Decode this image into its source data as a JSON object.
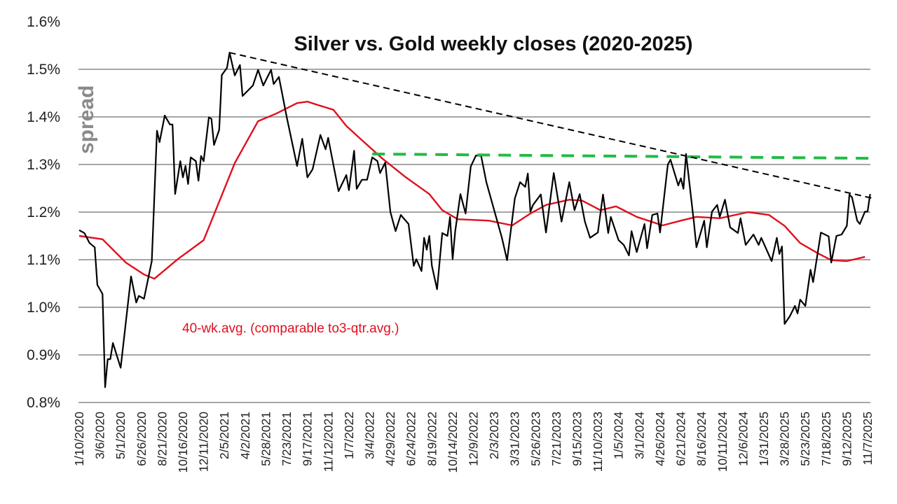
{
  "chart_data": {
    "type": "line",
    "title": "Silver vs. Gold weekly closes (2020-2025)",
    "ylabel": "spread",
    "xlabel": "",
    "ylim": [
      0.8,
      1.6
    ],
    "yticks": [
      "0.8%",
      "0.9%",
      "1.0%",
      "1.1%",
      "1.2%",
      "1.3%",
      "1.4%",
      "1.5%",
      "1.6%"
    ],
    "xticks": [
      "1/10/2020",
      "3/6/2020",
      "5/1/2020",
      "6/26/2020",
      "8/21/2020",
      "10/16/2020",
      "12/11/2020",
      "2/5/2021",
      "4/2/2021",
      "5/28/2021",
      "7/23/2021",
      "9/17/2021",
      "11/12/2021",
      "1/7/2022",
      "3/4/2022",
      "4/29/2022",
      "6/24/2022",
      "8/19/2022",
      "10/14/2022",
      "12/9/2022",
      "2/3/2023",
      "3/31/2023",
      "5/26/2023",
      "7/21/2023",
      "9/15/2023",
      "11/10/2023",
      "1/5/2024",
      "3/1/2024",
      "4/26/2024",
      "6/21/2024",
      "8/16/2024",
      "10/11/2024",
      "12/6/2024",
      "1/31/2025",
      "3/28/2025",
      "5/23/2025",
      "7/18/2025",
      "9/12/2025",
      "11/7/2025"
    ],
    "grid": true,
    "annotation": "40-wk.avg. (comparable to3-qtr.avg.)",
    "colors": {
      "weekly": "#000000",
      "avg": "#e0101e",
      "trend": "#000000",
      "support": "#22bb44",
      "grid": "#a6a6a6"
    },
    "series": [
      {
        "key": "weekly",
        "points": [
          [
            "2020-01-10",
            1.162
          ],
          [
            "2020-01-24",
            1.156
          ],
          [
            "2020-02-07",
            1.135
          ],
          [
            "2020-02-21",
            1.126
          ],
          [
            "2020-02-28",
            1.047
          ],
          [
            "2020-03-13",
            1.028
          ],
          [
            "2020-03-20",
            0.832
          ],
          [
            "2020-03-27",
            0.891
          ],
          [
            "2020-04-03",
            0.891
          ],
          [
            "2020-04-10",
            0.925
          ],
          [
            "2020-05-01",
            0.873
          ],
          [
            "2020-05-29",
            1.065
          ],
          [
            "2020-06-12",
            1.01
          ],
          [
            "2020-06-19",
            1.024
          ],
          [
            "2020-07-03",
            1.018
          ],
          [
            "2020-07-24",
            1.097
          ],
          [
            "2020-07-31",
            1.234
          ],
          [
            "2020-08-07",
            1.371
          ],
          [
            "2020-08-14",
            1.347
          ],
          [
            "2020-08-28",
            1.403
          ],
          [
            "2020-09-11",
            1.384
          ],
          [
            "2020-09-18",
            1.384
          ],
          [
            "2020-09-25",
            1.238
          ],
          [
            "2020-10-09",
            1.307
          ],
          [
            "2020-10-16",
            1.273
          ],
          [
            "2020-10-23",
            1.297
          ],
          [
            "2020-10-30",
            1.259
          ],
          [
            "2020-11-06",
            1.315
          ],
          [
            "2020-11-20",
            1.307
          ],
          [
            "2020-11-27",
            1.266
          ],
          [
            "2020-12-04",
            1.318
          ],
          [
            "2020-12-11",
            1.307
          ],
          [
            "2020-12-25",
            1.399
          ],
          [
            "2021-01-01",
            1.396
          ],
          [
            "2021-01-08",
            1.341
          ],
          [
            "2021-01-22",
            1.373
          ],
          [
            "2021-01-29",
            1.488
          ],
          [
            "2021-02-12",
            1.503
          ],
          [
            "2021-02-19",
            1.535
          ],
          [
            "2021-03-05",
            1.487
          ],
          [
            "2021-03-19",
            1.509
          ],
          [
            "2021-03-26",
            1.444
          ],
          [
            "2021-04-23",
            1.466
          ],
          [
            "2021-05-07",
            1.499
          ],
          [
            "2021-05-21",
            1.466
          ],
          [
            "2021-06-11",
            1.499
          ],
          [
            "2021-06-18",
            1.469
          ],
          [
            "2021-07-02",
            1.484
          ],
          [
            "2021-07-23",
            1.4
          ],
          [
            "2021-08-20",
            1.297
          ],
          [
            "2021-09-03",
            1.354
          ],
          [
            "2021-09-17",
            1.273
          ],
          [
            "2021-10-01",
            1.29
          ],
          [
            "2021-10-22",
            1.362
          ],
          [
            "2021-11-05",
            1.332
          ],
          [
            "2021-11-12",
            1.356
          ],
          [
            "2021-12-10",
            1.244
          ],
          [
            "2021-12-31",
            1.278
          ],
          [
            "2022-01-07",
            1.246
          ],
          [
            "2022-01-21",
            1.329
          ],
          [
            "2022-01-28",
            1.249
          ],
          [
            "2022-02-11",
            1.268
          ],
          [
            "2022-02-25",
            1.268
          ],
          [
            "2022-03-11",
            1.315
          ],
          [
            "2022-03-25",
            1.307
          ],
          [
            "2022-04-01",
            1.282
          ],
          [
            "2022-04-15",
            1.304
          ],
          [
            "2022-04-29",
            1.2
          ],
          [
            "2022-05-13",
            1.16
          ],
          [
            "2022-05-27",
            1.194
          ],
          [
            "2022-06-17",
            1.175
          ],
          [
            "2022-07-01",
            1.087
          ],
          [
            "2022-07-08",
            1.101
          ],
          [
            "2022-07-22",
            1.076
          ],
          [
            "2022-07-29",
            1.146
          ],
          [
            "2022-08-05",
            1.121
          ],
          [
            "2022-08-12",
            1.15
          ],
          [
            "2022-08-19",
            1.087
          ],
          [
            "2022-09-02",
            1.038
          ],
          [
            "2022-09-16",
            1.156
          ],
          [
            "2022-09-30",
            1.15
          ],
          [
            "2022-10-07",
            1.19
          ],
          [
            "2022-10-14",
            1.101
          ],
          [
            "2022-10-21",
            1.16
          ],
          [
            "2022-11-04",
            1.238
          ],
          [
            "2022-11-18",
            1.197
          ],
          [
            "2022-12-02",
            1.296
          ],
          [
            "2022-12-16",
            1.319
          ],
          [
            "2022-12-30",
            1.318
          ],
          [
            "2023-01-13",
            1.263
          ],
          [
            "2023-02-10",
            1.185
          ],
          [
            "2023-02-24",
            1.146
          ],
          [
            "2023-03-10",
            1.099
          ],
          [
            "2023-03-31",
            1.229
          ],
          [
            "2023-04-14",
            1.263
          ],
          [
            "2023-04-28",
            1.253
          ],
          [
            "2023-05-05",
            1.281
          ],
          [
            "2023-05-12",
            1.201
          ],
          [
            "2023-05-19",
            1.215
          ],
          [
            "2023-06-09",
            1.237
          ],
          [
            "2023-06-23",
            1.157
          ],
          [
            "2023-07-14",
            1.282
          ],
          [
            "2023-08-04",
            1.18
          ],
          [
            "2023-08-25",
            1.263
          ],
          [
            "2023-09-08",
            1.204
          ],
          [
            "2023-09-22",
            1.238
          ],
          [
            "2023-10-06",
            1.18
          ],
          [
            "2023-10-20",
            1.146
          ],
          [
            "2023-11-10",
            1.157
          ],
          [
            "2023-11-24",
            1.237
          ],
          [
            "2023-12-08",
            1.156
          ],
          [
            "2023-12-15",
            1.19
          ],
          [
            "2024-01-05",
            1.141
          ],
          [
            "2024-01-19",
            1.131
          ],
          [
            "2024-02-02",
            1.109
          ],
          [
            "2024-02-09",
            1.16
          ],
          [
            "2024-02-23",
            1.116
          ],
          [
            "2024-03-15",
            1.175
          ],
          [
            "2024-03-22",
            1.124
          ],
          [
            "2024-04-05",
            1.194
          ],
          [
            "2024-04-19",
            1.197
          ],
          [
            "2024-04-26",
            1.157
          ],
          [
            "2024-05-17",
            1.3
          ],
          [
            "2024-05-24",
            1.31
          ],
          [
            "2024-06-14",
            1.256
          ],
          [
            "2024-06-21",
            1.271
          ],
          [
            "2024-06-28",
            1.249
          ],
          [
            "2024-07-05",
            1.322
          ],
          [
            "2024-07-26",
            1.18
          ],
          [
            "2024-08-02",
            1.126
          ],
          [
            "2024-08-23",
            1.182
          ],
          [
            "2024-08-30",
            1.126
          ],
          [
            "2024-09-13",
            1.201
          ],
          [
            "2024-09-27",
            1.215
          ],
          [
            "2024-10-04",
            1.19
          ],
          [
            "2024-10-18",
            1.226
          ],
          [
            "2024-11-01",
            1.168
          ],
          [
            "2024-11-22",
            1.156
          ],
          [
            "2024-11-29",
            1.187
          ],
          [
            "2024-12-13",
            1.131
          ],
          [
            "2025-01-03",
            1.153
          ],
          [
            "2025-01-17",
            1.131
          ],
          [
            "2025-01-24",
            1.146
          ],
          [
            "2025-02-21",
            1.097
          ],
          [
            "2025-03-07",
            1.146
          ],
          [
            "2025-03-14",
            1.112
          ],
          [
            "2025-03-21",
            1.128
          ],
          [
            "2025-03-28",
            0.965
          ],
          [
            "2025-04-11",
            0.981
          ],
          [
            "2025-04-25",
            1.003
          ],
          [
            "2025-05-02",
            0.987
          ],
          [
            "2025-05-09",
            1.016
          ],
          [
            "2025-05-23",
            1.003
          ],
          [
            "2025-06-06",
            1.079
          ],
          [
            "2025-06-13",
            1.053
          ],
          [
            "2025-07-04",
            1.157
          ],
          [
            "2025-07-25",
            1.149
          ],
          [
            "2025-08-01",
            1.094
          ],
          [
            "2025-08-15",
            1.15
          ],
          [
            "2025-08-29",
            1.153
          ],
          [
            "2025-09-12",
            1.171
          ],
          [
            "2025-09-19",
            1.237
          ],
          [
            "2025-09-26",
            1.231
          ],
          [
            "2025-10-10",
            1.182
          ],
          [
            "2025-10-17",
            1.175
          ],
          [
            "2025-10-31",
            1.201
          ],
          [
            "2025-11-07",
            1.201
          ],
          [
            "2025-11-14",
            1.238
          ]
        ]
      },
      {
        "key": "avg",
        "name": "40-wk.avg. (comparable to3-qtr.avg.)",
        "points": [
          [
            "2020-01-10",
            1.15
          ],
          [
            "2020-03-13",
            1.143
          ],
          [
            "2020-05-15",
            1.094
          ],
          [
            "2020-07-03",
            1.069
          ],
          [
            "2020-07-31",
            1.06
          ],
          [
            "2020-10-02",
            1.101
          ],
          [
            "2020-12-11",
            1.141
          ],
          [
            "2021-03-05",
            1.303
          ],
          [
            "2021-05-07",
            1.391
          ],
          [
            "2021-06-25",
            1.407
          ],
          [
            "2021-08-20",
            1.429
          ],
          [
            "2021-09-17",
            1.432
          ],
          [
            "2021-10-15",
            1.425
          ],
          [
            "2021-11-26",
            1.415
          ],
          [
            "2021-12-31",
            1.381
          ],
          [
            "2022-02-04",
            1.356
          ],
          [
            "2022-04-08",
            1.312
          ],
          [
            "2022-06-10",
            1.273
          ],
          [
            "2022-08-12",
            1.238
          ],
          [
            "2022-09-16",
            1.204
          ],
          [
            "2022-10-28",
            1.185
          ],
          [
            "2023-01-20",
            1.182
          ],
          [
            "2023-03-24",
            1.172
          ],
          [
            "2023-05-12",
            1.197
          ],
          [
            "2023-06-23",
            1.215
          ],
          [
            "2023-08-25",
            1.226
          ],
          [
            "2023-09-29",
            1.224
          ],
          [
            "2023-11-17",
            1.204
          ],
          [
            "2023-12-29",
            1.212
          ],
          [
            "2024-02-23",
            1.19
          ],
          [
            "2024-05-03",
            1.172
          ],
          [
            "2024-06-21",
            1.182
          ],
          [
            "2024-08-02",
            1.19
          ],
          [
            "2024-10-04",
            1.187
          ],
          [
            "2024-12-20",
            1.2
          ],
          [
            "2025-02-14",
            1.194
          ],
          [
            "2025-03-28",
            1.171
          ],
          [
            "2025-05-09",
            1.135
          ],
          [
            "2025-06-27",
            1.113
          ],
          [
            "2025-08-01",
            1.099
          ],
          [
            "2025-09-12",
            1.097
          ],
          [
            "2025-10-31",
            1.106
          ]
        ]
      },
      {
        "key": "trend",
        "points": [
          [
            "2021-02-19",
            1.535
          ],
          [
            "2025-11-21",
            1.229
          ]
        ]
      },
      {
        "key": "support",
        "points": [
          [
            "2022-03-11",
            1.322
          ],
          [
            "2025-11-21",
            1.313
          ]
        ]
      }
    ]
  }
}
